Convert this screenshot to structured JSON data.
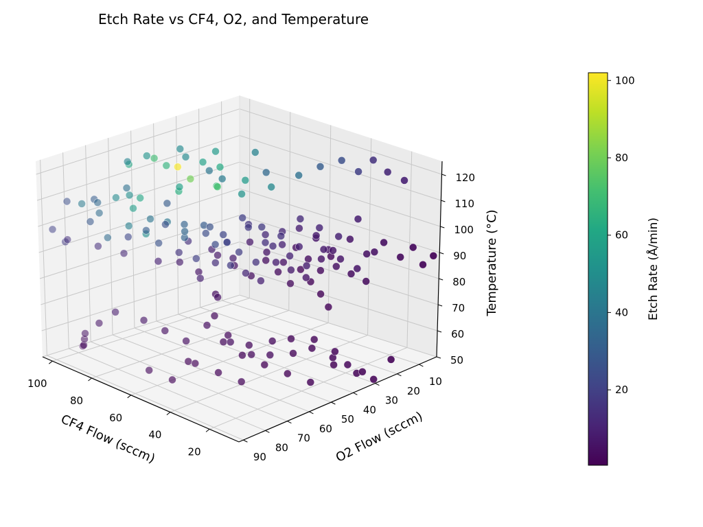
{
  "chart_data": {
    "type": "scatter",
    "projection": "3d",
    "title": "Etch Rate vs CF4, O2, and Temperature",
    "xlabel": "CF4 Flow (sccm)",
    "ylabel": "O2 Flow (sccm)",
    "zlabel": "Temperature (°C)",
    "colorbar_label": "Etch Rate (Å/min)",
    "colormap": "viridis",
    "grid": true,
    "xlim": [
      5,
      105
    ],
    "ylim": [
      2,
      92
    ],
    "zlim": [
      50,
      125
    ],
    "clim": [
      0.5,
      102
    ],
    "x_ticks": [
      "20",
      "40",
      "60",
      "80",
      "100"
    ],
    "x_tick_values": [
      20,
      40,
      60,
      80,
      100
    ],
    "y_ticks": [
      "10",
      "20",
      "30",
      "40",
      "50",
      "60",
      "70",
      "80",
      "90"
    ],
    "y_tick_values": [
      10,
      20,
      30,
      40,
      50,
      60,
      70,
      80,
      90
    ],
    "z_ticks": [
      "50",
      "60",
      "70",
      "80",
      "90",
      "100",
      "110",
      "120"
    ],
    "z_tick_values": [
      50,
      60,
      70,
      80,
      90,
      100,
      110,
      120
    ],
    "colorbar_ticks": [
      "20",
      "40",
      "60",
      "80",
      "100"
    ],
    "colorbar_tick_values": [
      20,
      40,
      60,
      80,
      100
    ],
    "points": [
      [
        95,
        60,
        118,
        62
      ],
      [
        88,
        55,
        121,
        70
      ],
      [
        92,
        40,
        119,
        48
      ],
      [
        80,
        35,
        120,
        55
      ],
      [
        72,
        45,
        118,
        40
      ],
      [
        66,
        30,
        122,
        45
      ],
      [
        85,
        70,
        115,
        38
      ],
      [
        90,
        80,
        112,
        30
      ],
      [
        78,
        75,
        116,
        50
      ],
      [
        70,
        60,
        117,
        58
      ],
      [
        60,
        50,
        120,
        42
      ],
      [
        55,
        35,
        119,
        35
      ],
      [
        98,
        85,
        110,
        25
      ],
      [
        94,
        75,
        108,
        34
      ],
      [
        84,
        65,
        110,
        60
      ],
      [
        76,
        55,
        112,
        64
      ],
      [
        68,
        45,
        113,
        72
      ],
      [
        62,
        38,
        115,
        55
      ],
      [
        82,
        50,
        118,
        101
      ],
      [
        78,
        48,
        114,
        80
      ],
      [
        74,
        40,
        110,
        68
      ],
      [
        66,
        36,
        108,
        52
      ],
      [
        58,
        30,
        111,
        47
      ],
      [
        50,
        25,
        116,
        38
      ],
      [
        45,
        20,
        119,
        30
      ],
      [
        40,
        15,
        121,
        25
      ],
      [
        35,
        12,
        117,
        20
      ],
      [
        30,
        10,
        122,
        15
      ],
      [
        25,
        8,
        118,
        12
      ],
      [
        20,
        5,
        115,
        10
      ],
      [
        100,
        90,
        100,
        20
      ],
      [
        96,
        88,
        96,
        18
      ],
      [
        90,
        82,
        104,
        28
      ],
      [
        86,
        78,
        98,
        36
      ],
      [
        82,
        72,
        102,
        44
      ],
      [
        78,
        68,
        99,
        50
      ],
      [
        74,
        62,
        103,
        40
      ],
      [
        70,
        58,
        97,
        33
      ],
      [
        64,
        52,
        101,
        26
      ],
      [
        60,
        48,
        95,
        22
      ],
      [
        56,
        42,
        100,
        18
      ],
      [
        52,
        38,
        94,
        15
      ],
      [
        48,
        34,
        98,
        12
      ],
      [
        44,
        30,
        92,
        10
      ],
      [
        40,
        26,
        96,
        8
      ],
      [
        36,
        22,
        90,
        7
      ],
      [
        32,
        18,
        94,
        6
      ],
      [
        28,
        14,
        88,
        5
      ],
      [
        24,
        10,
        92,
        4
      ],
      [
        20,
        6,
        86,
        3
      ],
      [
        16,
        4,
        90,
        3
      ],
      [
        12,
        3,
        84,
        2
      ],
      [
        8,
        2,
        88,
        2
      ],
      [
        104,
        80,
        92,
        15
      ],
      [
        100,
        70,
        88,
        14
      ],
      [
        96,
        60,
        90,
        22
      ],
      [
        92,
        50,
        86,
        26
      ],
      [
        88,
        42,
        92,
        32
      ],
      [
        84,
        36,
        88,
        24
      ],
      [
        80,
        30,
        84,
        18
      ],
      [
        76,
        24,
        90,
        16
      ],
      [
        72,
        20,
        86,
        12
      ],
      [
        68,
        16,
        82,
        10
      ],
      [
        64,
        12,
        88,
        9
      ],
      [
        60,
        8,
        84,
        7
      ],
      [
        56,
        6,
        80,
        6
      ],
      [
        104,
        55,
        80,
        12
      ],
      [
        98,
        45,
        76,
        10
      ],
      [
        94,
        35,
        82,
        14
      ],
      [
        90,
        28,
        78,
        9
      ],
      [
        86,
        22,
        74,
        8
      ],
      [
        82,
        18,
        80,
        7
      ],
      [
        78,
        14,
        76,
        6
      ],
      [
        74,
        10,
        72,
        5
      ],
      [
        70,
        8,
        78,
        4
      ],
      [
        66,
        6,
        74,
        4
      ],
      [
        62,
        4,
        70,
        3
      ],
      [
        58,
        3,
        76,
        3
      ],
      [
        104,
        30,
        70,
        8
      ],
      [
        100,
        25,
        66,
        6
      ],
      [
        96,
        20,
        72,
        7
      ],
      [
        92,
        16,
        68,
        5
      ],
      [
        88,
        12,
        64,
        4
      ],
      [
        84,
        9,
        70,
        4
      ],
      [
        80,
        7,
        66,
        3
      ],
      [
        76,
        5,
        62,
        3
      ],
      [
        72,
        4,
        68,
        2
      ],
      [
        68,
        3,
        64,
        2
      ],
      [
        64,
        2,
        60,
        2
      ],
      [
        60,
        2,
        56,
        2
      ],
      [
        55,
        90,
        80,
        6
      ],
      [
        50,
        85,
        76,
        5
      ],
      [
        45,
        80,
        72,
        4
      ],
      [
        40,
        75,
        78,
        4
      ],
      [
        35,
        70,
        74,
        3
      ],
      [
        30,
        65,
        70,
        3
      ],
      [
        25,
        60,
        66,
        3
      ],
      [
        20,
        55,
        72,
        2
      ],
      [
        15,
        50,
        68,
        2
      ],
      [
        10,
        45,
        64,
        2
      ],
      [
        8,
        40,
        60,
        2
      ],
      [
        6,
        35,
        56,
        1
      ],
      [
        55,
        88,
        60,
        3
      ],
      [
        50,
        82,
        56,
        2
      ],
      [
        45,
        76,
        62,
        2
      ],
      [
        40,
        70,
        58,
        2
      ],
      [
        35,
        64,
        54,
        2
      ],
      [
        30,
        58,
        60,
        1
      ],
      [
        25,
        52,
        56,
        1
      ],
      [
        20,
        46,
        52,
        1
      ],
      [
        15,
        40,
        58,
        1
      ],
      [
        10,
        34,
        54,
        1
      ],
      [
        8,
        28,
        50,
        1
      ],
      [
        6,
        22,
        56,
        1
      ],
      [
        60,
        60,
        85,
        10
      ],
      [
        58,
        55,
        90,
        14
      ],
      [
        56,
        50,
        88,
        18
      ],
      [
        54,
        45,
        84,
        12
      ],
      [
        52,
        40,
        80,
        10
      ],
      [
        50,
        35,
        86,
        9
      ],
      [
        48,
        30,
        82,
        8
      ],
      [
        46,
        25,
        78,
        7
      ],
      [
        44,
        20,
        84,
        6
      ],
      [
        42,
        15,
        80,
        5
      ],
      [
        40,
        10,
        76,
        4
      ],
      [
        38,
        5,
        72,
        3
      ],
      [
        65,
        65,
        95,
        16
      ],
      [
        62,
        60,
        92,
        20
      ],
      [
        58,
        55,
        97,
        24
      ],
      [
        54,
        48,
        93,
        19
      ],
      [
        50,
        44,
        89,
        15
      ],
      [
        46,
        40,
        95,
        13
      ],
      [
        42,
        36,
        91,
        11
      ],
      [
        38,
        32,
        87,
        9
      ],
      [
        34,
        28,
        93,
        8
      ],
      [
        30,
        24,
        89,
        7
      ],
      [
        26,
        20,
        85,
        6
      ],
      [
        22,
        16,
        91,
        5
      ],
      [
        70,
        75,
        105,
        30
      ],
      [
        66,
        70,
        107,
        26
      ],
      [
        62,
        65,
        104,
        34
      ],
      [
        58,
        60,
        106,
        30
      ],
      [
        54,
        55,
        102,
        22
      ],
      [
        50,
        50,
        108,
        20
      ],
      [
        46,
        45,
        104,
        18
      ],
      [
        42,
        40,
        100,
        15
      ],
      [
        38,
        35,
        106,
        13
      ],
      [
        34,
        30,
        102,
        11
      ],
      [
        30,
        25,
        98,
        10
      ],
      [
        26,
        20,
        104,
        9
      ],
      [
        90,
        65,
        122,
        45
      ],
      [
        86,
        60,
        124,
        52
      ],
      [
        82,
        55,
        120,
        66
      ],
      [
        78,
        50,
        123,
        48
      ],
      [
        74,
        46,
        121,
        58
      ],
      [
        70,
        42,
        119,
        62
      ],
      [
        102,
        75,
        105,
        42
      ],
      [
        99,
        70,
        101,
        36
      ],
      [
        95,
        66,
        107,
        48
      ],
      [
        91,
        62,
        103,
        56
      ],
      [
        87,
        58,
        99,
        40
      ],
      [
        83,
        54,
        105,
        30
      ],
      [
        30,
        80,
        95,
        4
      ],
      [
        25,
        85,
        90,
        3
      ],
      [
        20,
        88,
        100,
        5
      ],
      [
        15,
        90,
        85,
        3
      ],
      [
        10,
        86,
        80,
        2
      ],
      [
        35,
        88,
        70,
        2
      ],
      [
        45,
        60,
        65,
        4
      ],
      [
        40,
        55,
        60,
        3
      ],
      [
        35,
        50,
        65,
        3
      ],
      [
        30,
        45,
        60,
        2
      ],
      [
        25,
        40,
        65,
        2
      ],
      [
        20,
        35,
        60,
        2
      ],
      [
        75,
        85,
        75,
        8
      ],
      [
        80,
        88,
        70,
        6
      ],
      [
        85,
        90,
        65,
        5
      ],
      [
        90,
        86,
        60,
        4
      ],
      [
        95,
        82,
        55,
        3
      ],
      [
        100,
        78,
        52,
        3
      ]
    ]
  }
}
